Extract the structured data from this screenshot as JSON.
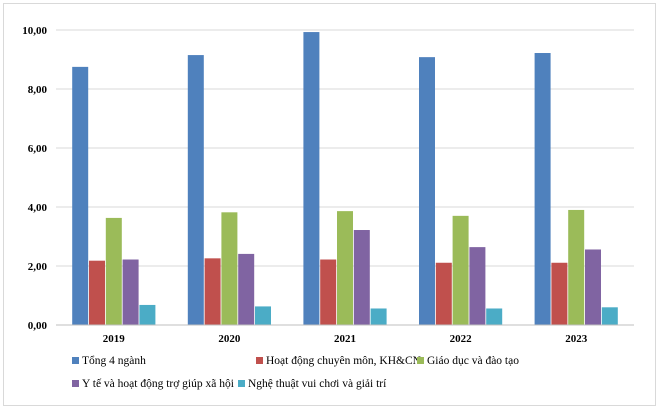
{
  "chart_data": {
    "type": "bar",
    "title": "",
    "xlabel": "",
    "ylabel": "",
    "categories": [
      "2019",
      "2020",
      "2021",
      "2022",
      "2023"
    ],
    "ylim": [
      0,
      10
    ],
    "yticks": [
      "0,00",
      "2,00",
      "4,00",
      "6,00",
      "8,00",
      "10,00"
    ],
    "series": [
      {
        "name": "Tổng 4 ngành",
        "color": "#4f81bd",
        "values": [
          8.75,
          9.15,
          9.93,
          9.08,
          9.22
        ]
      },
      {
        "name": "Hoạt động chuyên môn, KH&CN",
        "color": "#c0504d",
        "values": [
          2.18,
          2.26,
          2.22,
          2.11,
          2.11
        ]
      },
      {
        "name": "Giáo dục và đào tạo",
        "color": "#9bbb59",
        "values": [
          3.63,
          3.82,
          3.86,
          3.7,
          3.9
        ]
      },
      {
        "name": "Y tế và hoạt động trợ giúp xã hội",
        "color": "#8064a2",
        "values": [
          2.22,
          2.41,
          3.22,
          2.64,
          2.56
        ]
      },
      {
        "name": "Nghệ thuật vui chơi và giải trí",
        "color": "#4bacc6",
        "values": [
          0.68,
          0.63,
          0.56,
          0.56,
          0.6
        ]
      }
    ],
    "legend_position": "bottom"
  }
}
